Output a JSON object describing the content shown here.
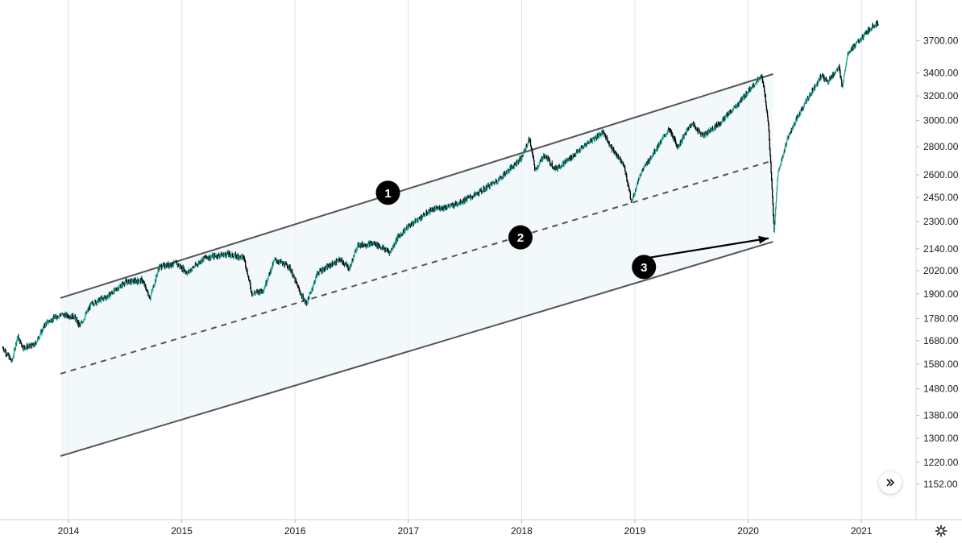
{
  "chart_data": {
    "type": "candlestick",
    "title": "",
    "x_axis": {
      "tick_labels": [
        "2014",
        "2015",
        "2016",
        "2017",
        "2018",
        "2019",
        "2020",
        "2021"
      ],
      "range_years": [
        2013.42,
        2021.53
      ]
    },
    "y_axis": {
      "scale": "log",
      "tick_values": [
        3700,
        3400,
        3200,
        3000,
        2800,
        2600,
        2450,
        2300,
        2140,
        2020,
        1900,
        1780,
        1680,
        1580,
        1480,
        1380,
        1300,
        1220,
        1152
      ],
      "tick_labels": [
        "3700.00",
        "3400.00",
        "3200.00",
        "3000.00",
        "2800.00",
        "2600.00",
        "2450.00",
        "2300.00",
        "2140.00",
        "2020.00",
        "1900.00",
        "1780.00",
        "1680.00",
        "1580.00",
        "1480.00",
        "1380.00",
        "1300.00",
        "1220.00",
        "1152.00"
      ],
      "range": [
        1110,
        3880
      ],
      "position": "right"
    },
    "grid": {
      "vertical": true,
      "horizontal": false
    },
    "colors": {
      "up": "#26a69a",
      "down": "#000000",
      "channel_line": "#555555",
      "channel_fill": "#eef5f8",
      "marker_bg": "#000000",
      "marker_text": "#ffffff",
      "grid": "#e0e3eb",
      "axis_text": "#131722"
    },
    "price_path": [
      {
        "t": 2013.42,
        "v": 1650
      },
      {
        "t": 2013.5,
        "v": 1590
      },
      {
        "t": 2013.55,
        "v": 1700
      },
      {
        "t": 2013.6,
        "v": 1650
      },
      {
        "t": 2013.7,
        "v": 1660
      },
      {
        "t": 2013.8,
        "v": 1760
      },
      {
        "t": 2013.93,
        "v": 1800
      },
      {
        "t": 2014.05,
        "v": 1790
      },
      {
        "t": 2014.1,
        "v": 1745
      },
      {
        "t": 2014.2,
        "v": 1850
      },
      {
        "t": 2014.35,
        "v": 1890
      },
      {
        "t": 2014.5,
        "v": 1960
      },
      {
        "t": 2014.65,
        "v": 1970
      },
      {
        "t": 2014.72,
        "v": 1880
      },
      {
        "t": 2014.8,
        "v": 2040
      },
      {
        "t": 2014.95,
        "v": 2060
      },
      {
        "t": 2015.05,
        "v": 2010
      },
      {
        "t": 2015.2,
        "v": 2090
      },
      {
        "t": 2015.4,
        "v": 2110
      },
      {
        "t": 2015.55,
        "v": 2090
      },
      {
        "t": 2015.62,
        "v": 1900
      },
      {
        "t": 2015.72,
        "v": 1920
      },
      {
        "t": 2015.82,
        "v": 2080
      },
      {
        "t": 2015.95,
        "v": 2040
      },
      {
        "t": 2016.05,
        "v": 1900
      },
      {
        "t": 2016.1,
        "v": 1850
      },
      {
        "t": 2016.2,
        "v": 2010
      },
      {
        "t": 2016.4,
        "v": 2080
      },
      {
        "t": 2016.48,
        "v": 2030
      },
      {
        "t": 2016.55,
        "v": 2160
      },
      {
        "t": 2016.7,
        "v": 2170
      },
      {
        "t": 2016.84,
        "v": 2120
      },
      {
        "t": 2016.9,
        "v": 2200
      },
      {
        "t": 2017.0,
        "v": 2270
      },
      {
        "t": 2017.2,
        "v": 2370
      },
      {
        "t": 2017.4,
        "v": 2400
      },
      {
        "t": 2017.6,
        "v": 2470
      },
      {
        "t": 2017.8,
        "v": 2570
      },
      {
        "t": 2018.0,
        "v": 2720
      },
      {
        "t": 2018.07,
        "v": 2860
      },
      {
        "t": 2018.12,
        "v": 2630
      },
      {
        "t": 2018.2,
        "v": 2740
      },
      {
        "t": 2018.3,
        "v": 2640
      },
      {
        "t": 2018.45,
        "v": 2730
      },
      {
        "t": 2018.6,
        "v": 2840
      },
      {
        "t": 2018.72,
        "v": 2910
      },
      {
        "t": 2018.8,
        "v": 2780
      },
      {
        "t": 2018.9,
        "v": 2680
      },
      {
        "t": 2018.97,
        "v": 2420
      },
      {
        "t": 2019.05,
        "v": 2610
      },
      {
        "t": 2019.2,
        "v": 2800
      },
      {
        "t": 2019.3,
        "v": 2930
      },
      {
        "t": 2019.38,
        "v": 2800
      },
      {
        "t": 2019.5,
        "v": 2980
      },
      {
        "t": 2019.6,
        "v": 2880
      },
      {
        "t": 2019.75,
        "v": 2980
      },
      {
        "t": 2019.9,
        "v": 3120
      },
      {
        "t": 2020.05,
        "v": 3300
      },
      {
        "t": 2020.12,
        "v": 3370
      },
      {
        "t": 2020.15,
        "v": 3200
      },
      {
        "t": 2020.18,
        "v": 2950
      },
      {
        "t": 2020.21,
        "v": 2500
      },
      {
        "t": 2020.23,
        "v": 2240
      },
      {
        "t": 2020.26,
        "v": 2600
      },
      {
        "t": 2020.35,
        "v": 2870
      },
      {
        "t": 2020.45,
        "v": 3050
      },
      {
        "t": 2020.55,
        "v": 3220
      },
      {
        "t": 2020.65,
        "v": 3380
      },
      {
        "t": 2020.7,
        "v": 3320
      },
      {
        "t": 2020.8,
        "v": 3450
      },
      {
        "t": 2020.83,
        "v": 3280
      },
      {
        "t": 2020.88,
        "v": 3590
      },
      {
        "t": 2021.0,
        "v": 3720
      },
      {
        "t": 2021.1,
        "v": 3850
      },
      {
        "t": 2021.15,
        "v": 3880
      }
    ],
    "annotations": {
      "channel": {
        "upper": [
          {
            "t": 2013.93,
            "v": 1880
          },
          {
            "t": 2020.22,
            "v": 3390
          }
        ],
        "middle": [
          {
            "t": 2013.93,
            "v": 1540
          },
          {
            "t": 2020.22,
            "v": 2700
          }
        ],
        "lower": [
          {
            "t": 2013.93,
            "v": 1240
          },
          {
            "t": 2020.22,
            "v": 2180
          }
        ]
      },
      "arrow": {
        "from": {
          "t": 2019.07,
          "v": 2085
        },
        "to": {
          "t": 2020.18,
          "v": 2200
        }
      },
      "markers": [
        {
          "label": "1",
          "t": 2016.82,
          "v": 2480
        },
        {
          "label": "2",
          "t": 2017.99,
          "v": 2205
        },
        {
          "label": "3",
          "t": 2019.08,
          "v": 2040
        }
      ]
    }
  },
  "ui": {
    "scroll_button_icon": "double-chevron-right-icon",
    "settings_icon": "gear-icon"
  }
}
